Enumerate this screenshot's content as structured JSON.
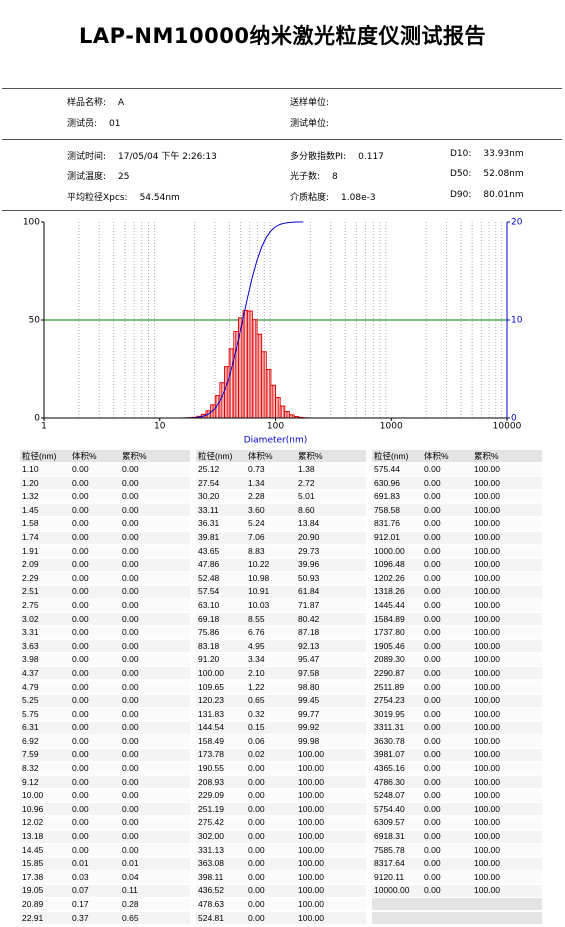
{
  "header": {
    "title": "LAP-NM10000纳米激光粒度仪测试报告"
  },
  "info": {
    "section1": [
      {
        "label": "样品名称:",
        "value": "A"
      },
      {
        "label": "送样单位:"
      },
      {
        "label": "测试员:",
        "value": "01"
      },
      {
        "label": "测试单位:"
      }
    ],
    "section2": [
      {
        "label": "测试时间:",
        "value": "17/05/04 下午 2:26:13"
      },
      {
        "label": "多分散指数PI:",
        "value": "0.117"
      },
      {
        "label": "D10:",
        "value": "33.93nm"
      },
      {
        "label": "测试温度:",
        "value": "25"
      },
      {
        "label": "光子数:",
        "value": "8"
      },
      {
        "label": "D50:",
        "value": "52.08nm"
      },
      {
        "label": "平均粒径Xpcs:",
        "value": "54.54nm"
      },
      {
        "label": "介质粘度:",
        "value": "1.08e-3"
      },
      {
        "label": "D90:",
        "value": "80.01nm"
      }
    ]
  },
  "chart_data": {
    "type": "combo",
    "xlabel": "Diameter(nm)",
    "log_x": true,
    "xlim": [
      1,
      10000
    ],
    "xticks": [
      1,
      10,
      100,
      1000,
      10000
    ],
    "ylim": [
      0,
      100
    ],
    "yticks": [
      0,
      50,
      100
    ],
    "y2lim": [
      0,
      20
    ],
    "y2ticks": [
      0,
      10,
      20
    ],
    "grid_color": "#008000",
    "minor_grid": true,
    "x": [
      15.85,
      17.38,
      19.05,
      20.89,
      22.91,
      25.12,
      27.54,
      30.2,
      33.11,
      36.31,
      39.81,
      43.65,
      47.86,
      52.48,
      57.54,
      63.1,
      69.18,
      75.86,
      83.18,
      91.2,
      100.0,
      109.65,
      120.23,
      131.83,
      144.54,
      158.49,
      173.78
    ],
    "series": [
      {
        "type": "bar",
        "axis": "y2",
        "color": "#e00000",
        "values": [
          0.01,
          0.03,
          0.07,
          0.17,
          0.37,
          0.73,
          1.34,
          2.28,
          3.6,
          5.24,
          7.06,
          8.83,
          10.22,
          10.98,
          10.91,
          10.03,
          8.55,
          6.76,
          4.95,
          3.34,
          2.1,
          1.22,
          0.65,
          0.32,
          0.15,
          0.06,
          0.02
        ]
      },
      {
        "type": "line",
        "color": "#0000cc",
        "values": [
          0.01,
          0.04,
          0.11,
          0.28,
          0.65,
          1.38,
          2.72,
          5.01,
          8.6,
          13.84,
          20.9,
          29.73,
          39.96,
          50.93,
          61.84,
          71.87,
          80.42,
          87.18,
          92.13,
          95.47,
          97.58,
          98.8,
          99.45,
          99.77,
          99.92,
          99.98,
          100.0
        ]
      }
    ]
  },
  "table": {
    "groups": [
      {
        "columns": [
          "粒径(nm)",
          "体积%",
          "累积%"
        ],
        "rows": [
          [
            "1.10",
            "0.00",
            "0.00"
          ],
          [
            "1.20",
            "0.00",
            "0.00"
          ],
          [
            "1.32",
            "0.00",
            "0.00"
          ],
          [
            "1.45",
            "0.00",
            "0.00"
          ],
          [
            "1.58",
            "0.00",
            "0.00"
          ],
          [
            "1.74",
            "0.00",
            "0.00"
          ],
          [
            "1.91",
            "0.00",
            "0.00"
          ],
          [
            "2.09",
            "0.00",
            "0.00"
          ],
          [
            "2.29",
            "0.00",
            "0.00"
          ],
          [
            "2.51",
            "0.00",
            "0.00"
          ],
          [
            "2.75",
            "0.00",
            "0.00"
          ],
          [
            "3.02",
            "0.00",
            "0.00"
          ],
          [
            "3.31",
            "0.00",
            "0.00"
          ],
          [
            "3.63",
            "0.00",
            "0.00"
          ],
          [
            "3.98",
            "0.00",
            "0.00"
          ],
          [
            "4.37",
            "0.00",
            "0.00"
          ],
          [
            "4.79",
            "0.00",
            "0.00"
          ],
          [
            "5.25",
            "0.00",
            "0.00"
          ],
          [
            "5.75",
            "0.00",
            "0.00"
          ],
          [
            "6.31",
            "0.00",
            "0.00"
          ],
          [
            "6.92",
            "0.00",
            "0.00"
          ],
          [
            "7.59",
            "0.00",
            "0.00"
          ],
          [
            "8.32",
            "0.00",
            "0.00"
          ],
          [
            "9.12",
            "0.00",
            "0.00"
          ],
          [
            "10.00",
            "0.00",
            "0.00"
          ],
          [
            "10.96",
            "0.00",
            "0.00"
          ],
          [
            "12.02",
            "0.00",
            "0.00"
          ],
          [
            "13.18",
            "0.00",
            "0.00"
          ],
          [
            "14.45",
            "0.00",
            "0.00"
          ],
          [
            "15.85",
            "0.01",
            "0.01"
          ],
          [
            "17.38",
            "0.03",
            "0.04"
          ],
          [
            "19.05",
            "0.07",
            "0.11"
          ],
          [
            "20.89",
            "0.17",
            "0.28"
          ],
          [
            "22.91",
            "0.37",
            "0.65"
          ]
        ]
      },
      {
        "columns": [
          "粒径(nm)",
          "体积%",
          "累积%"
        ],
        "rows": [
          [
            "25.12",
            "0.73",
            "1.38"
          ],
          [
            "27.54",
            "1.34",
            "2.72"
          ],
          [
            "30.20",
            "2.28",
            "5.01"
          ],
          [
            "33.11",
            "3.60",
            "8.60"
          ],
          [
            "36.31",
            "5.24",
            "13.84"
          ],
          [
            "39.81",
            "7.06",
            "20.90"
          ],
          [
            "43.65",
            "8.83",
            "29.73"
          ],
          [
            "47.86",
            "10.22",
            "39.96"
          ],
          [
            "52.48",
            "10.98",
            "50.93"
          ],
          [
            "57.54",
            "10.91",
            "61.84"
          ],
          [
            "63.10",
            "10.03",
            "71.87"
          ],
          [
            "69.18",
            "8.55",
            "80.42"
          ],
          [
            "75.86",
            "6.76",
            "87.18"
          ],
          [
            "83.18",
            "4.95",
            "92.13"
          ],
          [
            "91.20",
            "3.34",
            "95.47"
          ],
          [
            "100.00",
            "2.10",
            "97.58"
          ],
          [
            "109.65",
            "1.22",
            "98.80"
          ],
          [
            "120.23",
            "0.65",
            "99.45"
          ],
          [
            "131.83",
            "0.32",
            "99.77"
          ],
          [
            "144.54",
            "0.15",
            "99.92"
          ],
          [
            "158.49",
            "0.06",
            "99.98"
          ],
          [
            "173.78",
            "0.02",
            "100.00"
          ],
          [
            "190.55",
            "0.00",
            "100.00"
          ],
          [
            "208.93",
            "0.00",
            "100.00"
          ],
          [
            "229.09",
            "0.00",
            "100.00"
          ],
          [
            "251.19",
            "0.00",
            "100.00"
          ],
          [
            "275.42",
            "0.00",
            "100.00"
          ],
          [
            "302.00",
            "0.00",
            "100.00"
          ],
          [
            "331.13",
            "0.00",
            "100.00"
          ],
          [
            "363.08",
            "0.00",
            "100.00"
          ],
          [
            "398.11",
            "0.00",
            "100.00"
          ],
          [
            "436.52",
            "0.00",
            "100.00"
          ],
          [
            "478.63",
            "0.00",
            "100.00"
          ],
          [
            "524.81",
            "0.00",
            "100.00"
          ]
        ]
      },
      {
        "columns": [
          "粒径(nm)",
          "体积%",
          "累积%"
        ],
        "rows": [
          [
            "575.44",
            "0.00",
            "100.00"
          ],
          [
            "630.96",
            "0.00",
            "100.00"
          ],
          [
            "691.83",
            "0.00",
            "100.00"
          ],
          [
            "758.58",
            "0.00",
            "100.00"
          ],
          [
            "831.76",
            "0.00",
            "100.00"
          ],
          [
            "912.01",
            "0.00",
            "100.00"
          ],
          [
            "1000.00",
            "0.00",
            "100.00"
          ],
          [
            "1096.48",
            "0.00",
            "100.00"
          ],
          [
            "1202.26",
            "0.00",
            "100.00"
          ],
          [
            "1318.26",
            "0.00",
            "100.00"
          ],
          [
            "1445.44",
            "0.00",
            "100.00"
          ],
          [
            "1584.89",
            "0.00",
            "100.00"
          ],
          [
            "1737.80",
            "0.00",
            "100.00"
          ],
          [
            "1905.46",
            "0.00",
            "100.00"
          ],
          [
            "2089.30",
            "0.00",
            "100.00"
          ],
          [
            "2290.87",
            "0.00",
            "100.00"
          ],
          [
            "2511.89",
            "0.00",
            "100.00"
          ],
          [
            "2754.23",
            "0.00",
            "100.00"
          ],
          [
            "3019.95",
            "0.00",
            "100.00"
          ],
          [
            "3311.31",
            "0.00",
            "100.00"
          ],
          [
            "3630.78",
            "0.00",
            "100.00"
          ],
          [
            "3981.07",
            "0.00",
            "100.00"
          ],
          [
            "4365.16",
            "0.00",
            "100.00"
          ],
          [
            "4786.30",
            "0.00",
            "100.00"
          ],
          [
            "5248.07",
            "0.00",
            "100.00"
          ],
          [
            "5754.40",
            "0.00",
            "100.00"
          ],
          [
            "6309.57",
            "0.00",
            "100.00"
          ],
          [
            "6918.31",
            "0.00",
            "100.00"
          ],
          [
            "7585.78",
            "0.00",
            "100.00"
          ],
          [
            "8317.64",
            "0.00",
            "100.00"
          ],
          [
            "9120.11",
            "0.00",
            "100.00"
          ],
          [
            "10000.00",
            "0.00",
            "100.00"
          ]
        ]
      }
    ]
  }
}
